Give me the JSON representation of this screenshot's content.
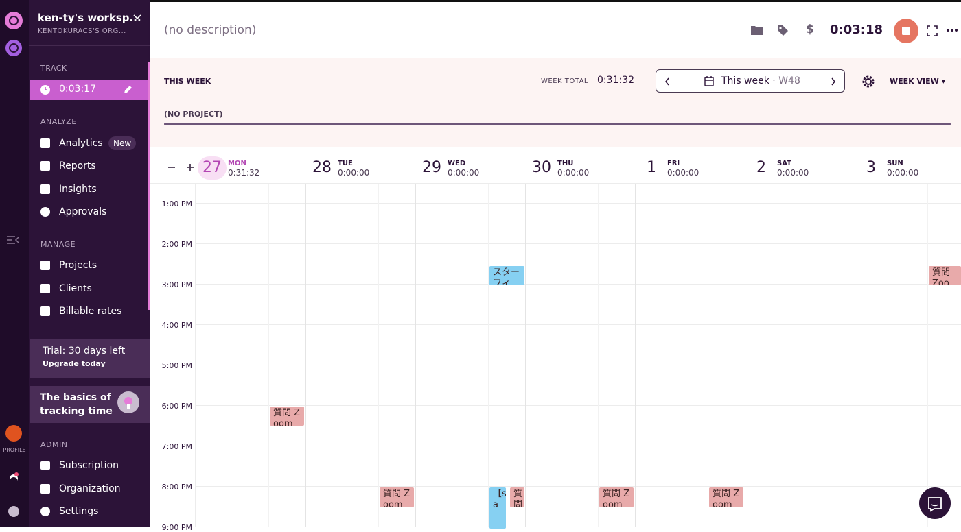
{
  "workspace": {
    "name": "ken-ty's worksp...",
    "org": "KENTOKURACS'S ORG..."
  },
  "rail": {
    "profile": "PROFILE"
  },
  "sidebar": {
    "track": {
      "title": "TRACK",
      "timer": "0:03:17"
    },
    "analyze": {
      "title": "ANALYZE",
      "items": [
        "Analytics",
        "Reports",
        "Insights",
        "Approvals"
      ],
      "badge": "New"
    },
    "manage": {
      "title": "MANAGE",
      "items": [
        "Projects",
        "Clients",
        "Billable rates"
      ]
    },
    "admin": {
      "title": "ADMIN",
      "items": [
        "Subscription",
        "Organization",
        "Settings"
      ]
    }
  },
  "trial": {
    "text": "Trial: 30 days left",
    "link": "Upgrade today"
  },
  "basics": "The basics of tracking time",
  "topbar": {
    "description": "(no description)",
    "billable": "$",
    "timer": "0:03:18"
  },
  "week": {
    "title": "THIS WEEK",
    "total_label": "WEEK TOTAL",
    "total": "0:31:32",
    "range": "This week",
    "separator": "·",
    "number": "W48",
    "view": "WEEK VIEW",
    "project": "(NO PROJECT)"
  },
  "days": [
    {
      "date": "27",
      "name": "MON",
      "total": "0:31:32"
    },
    {
      "date": "28",
      "name": "TUE",
      "total": "0:00:00"
    },
    {
      "date": "29",
      "name": "WED",
      "total": "0:00:00"
    },
    {
      "date": "30",
      "name": "THU",
      "total": "0:00:00"
    },
    {
      "date": "1",
      "name": "FRI",
      "total": "0:00:00"
    },
    {
      "date": "2",
      "name": "SAT",
      "total": "0:00:00"
    },
    {
      "date": "3",
      "name": "SUN",
      "total": "0:00:00"
    }
  ],
  "hours": [
    "1:00 PM",
    "2:00 PM",
    "3:00 PM",
    "4:00 PM",
    "5:00 PM",
    "6:00 PM",
    "7:00 PM",
    "8:00 PM",
    "9:00 PM"
  ],
  "events": [
    {
      "text": "スターフィ",
      "color": "#86d0f2"
    },
    {
      "text": "質問 Zoom",
      "color": "#e8aaaa"
    },
    {
      "text": "質問 Zoom",
      "color": "#e8aaaa"
    },
    {
      "text": "質問 Zoom",
      "color": "#e8aaaa"
    },
    {
      "text": "【sa",
      "color": "#86d0f2"
    },
    {
      "text": "質問",
      "color": "#e8aaaa"
    },
    {
      "text": "質問 Zoom",
      "color": "#e8aaaa"
    },
    {
      "text": "質問 Zoom",
      "color": "#e8aaaa"
    }
  ]
}
